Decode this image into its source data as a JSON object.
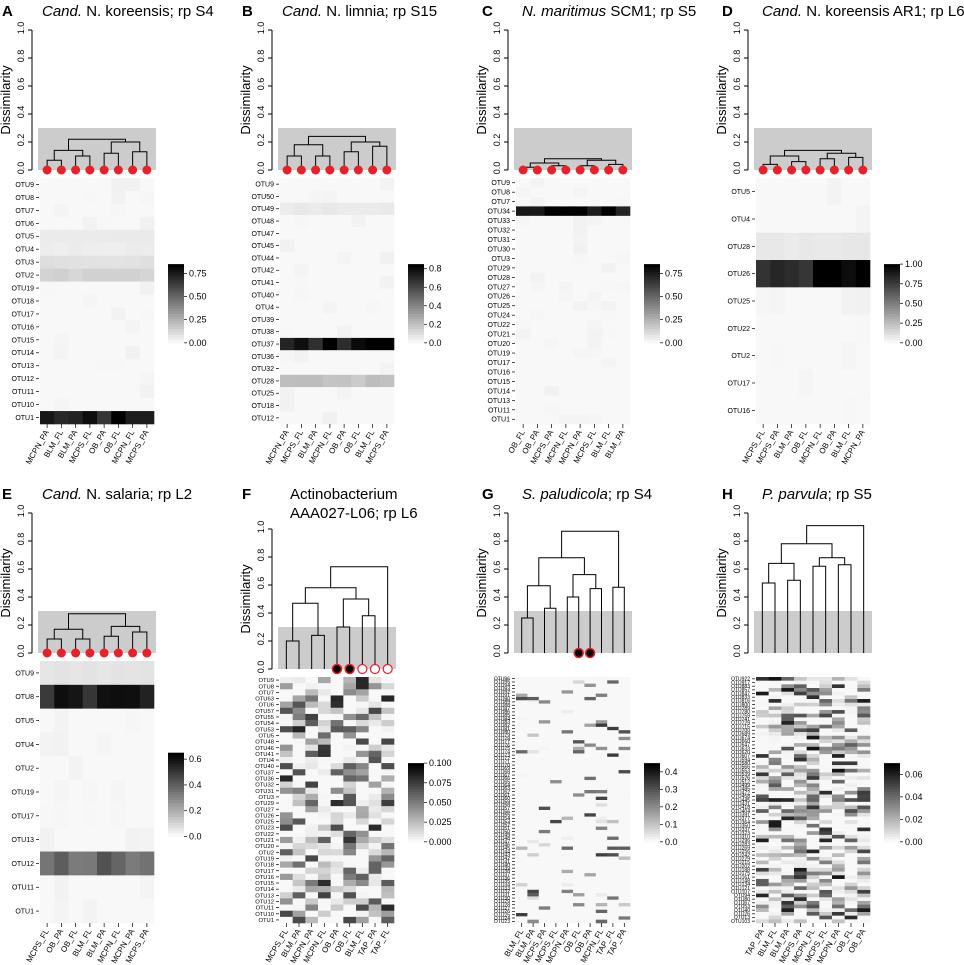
{
  "figure_type": "multi-panel dendrogram + heatmap",
  "colors": {
    "shade": "#cccccc",
    "node_red": "#e8202a",
    "node_black": "#000000",
    "line": "#000000"
  },
  "common": {
    "ylabel": "Dissimilarity",
    "dendro_ticks": [
      "0.0",
      "0.2",
      "0.4",
      "0.6",
      "0.8",
      "1.0"
    ]
  },
  "chart_data": [
    {
      "type": "heatmap",
      "panel": "A",
      "title_italic": "Cand.",
      "title_rest": " N. koreensis; rp S4",
      "ylim": [
        0,
        1
      ],
      "shade_height": 0.3,
      "merges": [
        0.07,
        0.1,
        0.12,
        0.14,
        0.13,
        0.2,
        0.22
      ],
      "markers": [
        "red",
        "red",
        "red",
        "red",
        "red",
        "red",
        "red",
        "red"
      ],
      "x_labels": [
        "MCPN_PA",
        "BLM_FL",
        "BLM_PA",
        "MCPS_FL",
        "OB_PA",
        "OB_FL",
        "MCPN_FL",
        "MCPS_PA"
      ],
      "rows": [
        "OTU9",
        "OTU8",
        "OTU7",
        "OTU6",
        "OTU5",
        "OTU4",
        "OTU3",
        "OTU2",
        "OTU19",
        "OTU18",
        "OTU17",
        "OTU16",
        "OTU15",
        "OTU14",
        "OTU13",
        "OTU12",
        "OTU11",
        "OTU10",
        "OTU1"
      ],
      "colorbar_ticks": [
        "0.75",
        "0.50",
        "0.25",
        "0.00"
      ],
      "vmax": 0.85,
      "hot": {
        "OTU1": 0.78,
        "OTU2": 0.12,
        "OTU3": 0.08,
        "OTU4": 0.04,
        "OTU5": 0.05
      }
    },
    {
      "type": "heatmap",
      "panel": "B",
      "title_italic": "Cand.",
      "title_rest": " N. limnia; rp S15",
      "ylim": [
        0,
        1
      ],
      "shade_height": 0.3,
      "merges": [
        0.1,
        0.1,
        0.13,
        0.17,
        0.18,
        0.2,
        0.24
      ],
      "markers": [
        "red",
        "red",
        "red",
        "red",
        "red",
        "red",
        "red",
        "red"
      ],
      "x_labels": [
        "MCPN_PA",
        "MCPS_FL",
        "BLM_PA",
        "MCPN_FL",
        "OB_PA",
        "OB_FL",
        "BLM_FL",
        "MCPS_PA"
      ],
      "rows": [
        "OTU9",
        "OTU50",
        "OTU49",
        "OTU48",
        "OTU47",
        "OTU45",
        "OTU44",
        "OTU42",
        "OTU41",
        "OTU40",
        "OTU4",
        "OTU39",
        "OTU38",
        "OTU37",
        "OTU36",
        "OTU32",
        "OTU28",
        "OTU25",
        "OTU18",
        "OTU12"
      ],
      "colorbar_ticks": [
        "0.8",
        "0.6",
        "0.4",
        "0.2",
        "0.0"
      ],
      "vmax": 0.85,
      "hot": {
        "OTU37": 0.8,
        "OTU28": 0.18,
        "OTU49": 0.05
      }
    },
    {
      "type": "heatmap",
      "panel": "C",
      "title_italic": "N. maritimus",
      "title_rest": " SCM1; rp S5",
      "ylim": [
        0,
        1
      ],
      "shade_height": 0.3,
      "merges": [
        0.02,
        0.03,
        0.04,
        0.03,
        0.05,
        0.07,
        0.08
      ],
      "markers": [
        "red",
        "red",
        "red",
        "red",
        "red",
        "red",
        "red",
        "red"
      ],
      "x_labels": [
        "OB_FL",
        "OB_PA",
        "MCPS_PA",
        "MCPN_FL",
        "MCPN_PA",
        "MCPS_FL",
        "BLM_FL",
        "BLM_PA"
      ],
      "rows": [
        "OTU9",
        "OTU8",
        "OTU7",
        "OTU34",
        "OTU33",
        "OTU32",
        "OTU31",
        "OTU30",
        "OTU3",
        "OTU29",
        "OTU28",
        "OTU27",
        "OTU26",
        "OTU25",
        "OTU24",
        "OTU22",
        "OTU21",
        "OTU20",
        "OTU19",
        "OTU17",
        "OTU16",
        "OTU15",
        "OTU14",
        "OTU13",
        "OTU11",
        "OTU1"
      ],
      "colorbar_ticks": [
        "0.75",
        "0.50",
        "0.25",
        "0.00"
      ],
      "vmax": 0.85,
      "hot": {
        "OTU34": 0.85
      }
    },
    {
      "type": "heatmap",
      "panel": "D",
      "title_italic": "Cand.",
      "title_rest": " N. koreensis AR1; rp L6",
      "ylim": [
        0,
        1
      ],
      "shade_height": 0.3,
      "merges": [
        0.04,
        0.06,
        0.08,
        0.09,
        0.1,
        0.12,
        0.14
      ],
      "markers": [
        "red",
        "red",
        "red",
        "red",
        "red",
        "red",
        "red",
        "red"
      ],
      "x_labels": [
        "MCPS_FL",
        "MCPS_PA",
        "BLM_PA",
        "OB_FL",
        "MCPN_FL",
        "OB_PA",
        "BLM_FL",
        "MCPN_PA"
      ],
      "rows": [
        "OTU5",
        "OTU4",
        "OTU28",
        "OTU26",
        "OTU25",
        "OTU22",
        "OTU2",
        "OTU17",
        "OTU16"
      ],
      "colorbar_ticks": [
        "1.00",
        "0.75",
        "0.50",
        "0.25",
        "0.00"
      ],
      "vmax": 1.0,
      "hot": {
        "OTU26": 0.92,
        "OTU28": 0.06
      }
    },
    {
      "type": "heatmap",
      "panel": "E",
      "title_italic": "Cand.",
      "title_rest": " N. salaria; rp L2",
      "ylim": [
        0,
        1
      ],
      "shade_height": 0.3,
      "merges": [
        0.1,
        0.1,
        0.12,
        0.15,
        0.17,
        0.19,
        0.28
      ],
      "markers": [
        "red",
        "red",
        "red",
        "red",
        "red",
        "red",
        "red",
        "red"
      ],
      "x_labels": [
        "MCPS_FL",
        "OB_PA",
        "OB_FL",
        "BLM_FL",
        "BLM_PA",
        "MCPN_FL",
        "MCPN_PA",
        "MCPS_PA"
      ],
      "rows": [
        "OTU9",
        "OTU8",
        "OTU5",
        "OTU4",
        "OTU2",
        "OTU19",
        "OTU17",
        "OTU13",
        "OTU12",
        "OTU11",
        "OTU1"
      ],
      "colorbar_ticks": [
        "0.6",
        "0.4",
        "0.2",
        "0.0"
      ],
      "vmax": 0.65,
      "hot": {
        "OTU8": 0.55,
        "OTU12": 0.38,
        "OTU9": 0.05
      }
    },
    {
      "type": "heatmap",
      "panel": "F",
      "title_lines": [
        "Actinobacterium",
        "AAA027-L06; rp L6"
      ],
      "ylim": [
        0,
        1
      ],
      "shade_height": 0.3,
      "merges": [
        0.2,
        0.24,
        0.3,
        0.38,
        0.47,
        0.5,
        0.58,
        0.73
      ],
      "markers": [
        "none",
        "none",
        "none",
        "none",
        "black",
        "black",
        "open",
        "open",
        "open"
      ],
      "x_labels": [
        "MCPS_FL",
        "BLM_PA",
        "MCPN_PA",
        "MCPN_FL",
        "OB_PA",
        "OB_FL",
        "BLM_FL",
        "TAP_PA",
        "TAP_FL"
      ],
      "rows": [
        "OTU9",
        "OTU8",
        "OTU7",
        "OTU63",
        "OTU6",
        "OTU57",
        "OTU55",
        "OTU54",
        "OTU53",
        "OTU5",
        "OTU48",
        "OTU46",
        "OTU41",
        "OTU4",
        "OTU40",
        "OTU37",
        "OTU36",
        "OTU32",
        "OTU31",
        "OTU3",
        "OTU29",
        "OTU27",
        "OTU26",
        "OTU25",
        "OTU23",
        "OTU22",
        "OTU21",
        "OTU20",
        "OTU2",
        "OTU19",
        "OTU18",
        "OTU17",
        "OTU16",
        "OTU15",
        "OTU14",
        "OTU13",
        "OTU12",
        "OTU11",
        "OTU10",
        "OTU1"
      ],
      "colorbar_ticks": [
        "0.100",
        "0.075",
        "0.050",
        "0.025",
        "0.000"
      ],
      "vmax": 0.1,
      "random_max": 0.085
    },
    {
      "type": "heatmap",
      "panel": "G",
      "title_italic": "S. paludicola",
      "title_rest": "; rp S4",
      "ylim": [
        0,
        1
      ],
      "shade_height": 0.3,
      "merges": [
        0.25,
        0.32,
        0.4,
        0.46,
        0.47,
        0.48,
        0.56,
        0.68,
        0.87
      ],
      "markers": [
        "none",
        "none",
        "none",
        "none",
        "none",
        "black",
        "black",
        "none",
        "none",
        "none"
      ],
      "x_labels": [
        "BLM_FL",
        "BLM_PA",
        "MCPS_PA",
        "MCPS_FL",
        "MCPN_PA",
        "OB_FL",
        "OB_PA",
        "MCPN_FL",
        "TAP_FL",
        "TAP_PA"
      ],
      "rows": [
        "OTU96",
        "OTU95",
        "OTU94",
        "OTU93",
        "OTU92",
        "OTU91",
        "OTU90",
        "OTU89",
        "OTU88",
        "OTU87",
        "OTU86",
        "OTU85",
        "OTU84",
        "OTU83",
        "OTU82",
        "OTU81",
        "OTU80",
        "OTU79",
        "OTU78",
        "OTU77",
        "OTU76",
        "OTU75",
        "OTU74",
        "OTU73",
        "OTU72",
        "OTU71",
        "OTU70",
        "OTU69",
        "OTU68",
        "OTU67",
        "OTU66",
        "OTU65",
        "OTU64",
        "OTU63",
        "OTU62",
        "OTU61",
        "OTU60",
        "OTU59",
        "OTU58",
        "OTU57",
        "OTU56",
        "OTU55",
        "OTU54",
        "OTU53",
        "OTU52",
        "OTU51",
        "OTU50",
        "OTU49",
        "OTU48",
        "OTU47",
        "OTU46",
        "OTU45",
        "OTU44",
        "OTU43",
        "OTU42",
        "OTU41",
        "OTU40",
        "OTU39",
        "OTU38",
        "OTU37",
        "OTU36",
        "OTU35",
        "OTU34",
        "OTU33",
        "OTU32",
        "OTU31",
        "OTU30",
        "OTU29",
        "OTU28",
        "OTU27",
        "OTU26",
        "OTU25",
        "OTU24",
        "OTU23"
      ],
      "colorbar_ticks": [
        "0.4",
        "0.3",
        "0.2",
        "0.1",
        "0.0"
      ],
      "vmax": 0.45,
      "random_max": 0.35,
      "sparse": true
    },
    {
      "type": "heatmap",
      "panel": "H",
      "title_italic": "P. parvula",
      "title_rest": "; rp S5",
      "ylim": [
        0,
        1
      ],
      "shade_height": 0.3,
      "merges": [
        0.5,
        0.52,
        0.62,
        0.63,
        0.64,
        0.68,
        0.78,
        0.91
      ],
      "markers": [
        "none",
        "none",
        "none",
        "none",
        "none",
        "none",
        "none",
        "none",
        "none"
      ],
      "x_labels": [
        "TAP_PA",
        "BLM_FL",
        "BLM_PA",
        "MCPS_PA",
        "MCPN_FL",
        "MCPS_FL",
        "MCPN_PA",
        "OB_FL",
        "OB_PA"
      ],
      "rows": [
        "OTU922",
        "OTU917",
        "OTU883",
        "OTU857",
        "OTU847",
        "OTU833",
        "OTU816",
        "OTU800",
        "OTU789",
        "OTU780",
        "OTU759",
        "OTU741",
        "OTU729",
        "OTU715",
        "OTU700",
        "OTU689",
        "OTU674",
        "OTU660",
        "OTU647",
        "OTU633",
        "OTU620",
        "OTU607",
        "OTU594",
        "OTU580",
        "OTU566",
        "OTU553",
        "OTU539",
        "OTU526",
        "OTU512",
        "OTU499",
        "OTU485",
        "OTU472",
        "OTU458",
        "OTU445",
        "OTU431",
        "OTU418",
        "OTU404",
        "OTU391",
        "OTU377",
        "OTU364",
        "OTU350",
        "OTU337",
        "OTU323",
        "OTU310",
        "OTU296",
        "OTU283",
        "OTU269",
        "OTU256",
        "OTU242",
        "OTU229",
        "OTU215",
        "OTU202",
        "OTU188",
        "OTU175",
        "OTU161",
        "OTU148",
        "OTU134",
        "OTU121",
        "OTU107",
        "OTU94",
        "OTU80",
        "OTU67",
        "OTU53",
        "OTU40",
        "OTU26",
        "OTU13",
        "OTU103"
      ],
      "colorbar_ticks": [
        "0.06",
        "0.04",
        "0.02",
        "0.00"
      ],
      "vmax": 0.07,
      "random_max": 0.065
    }
  ]
}
